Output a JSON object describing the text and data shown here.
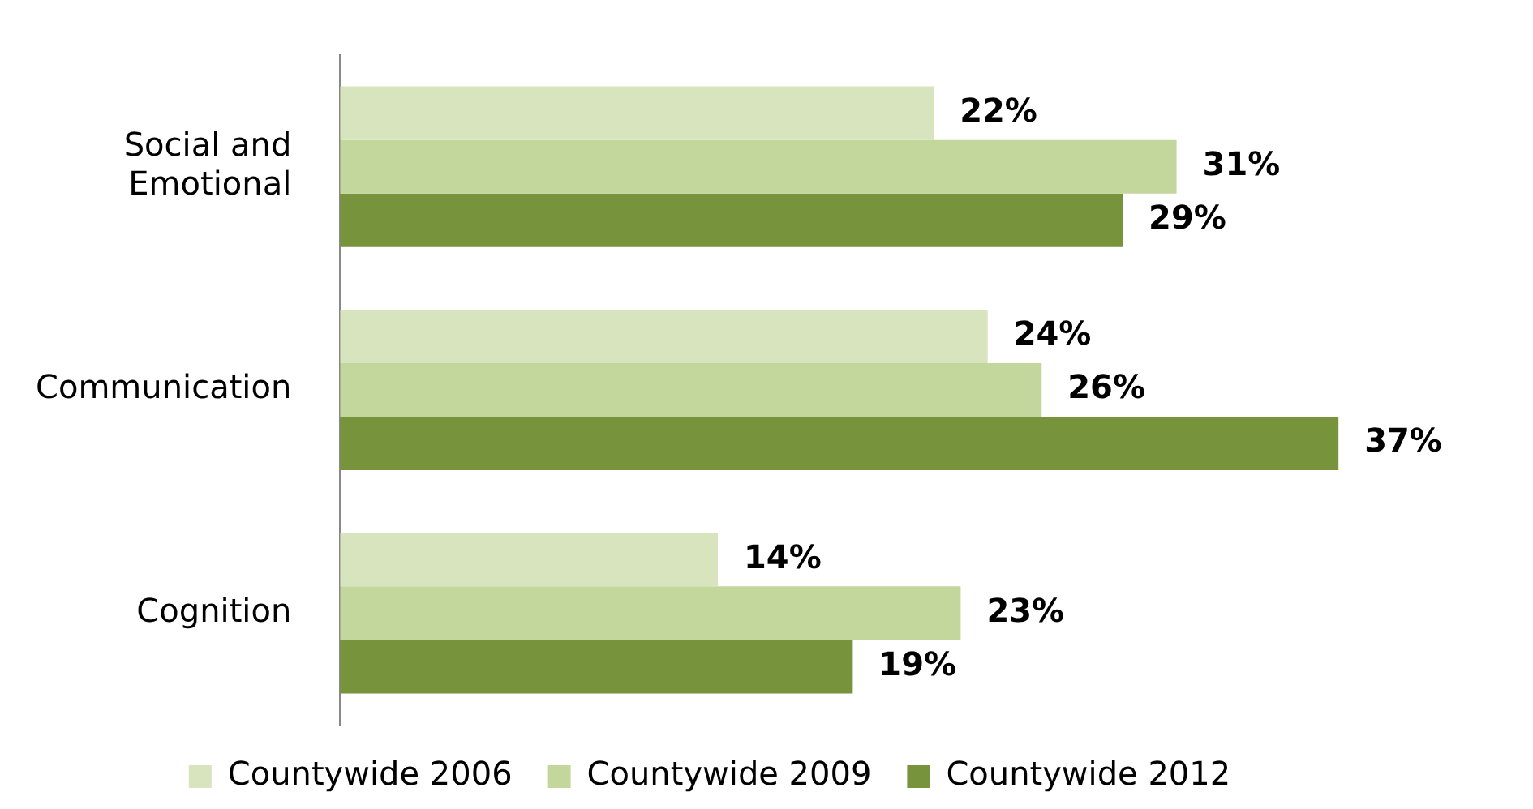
{
  "chart_data": {
    "type": "bar",
    "orientation": "horizontal",
    "categories": [
      "Social and\nEmotional",
      "Communication",
      "Cognition"
    ],
    "series": [
      {
        "name": "Countywide 2006",
        "color": "#d7e4bd",
        "values": [
          22,
          24,
          14
        ],
        "value_labels": [
          "22%",
          "24%",
          "14%"
        ]
      },
      {
        "name": "Countywide 2009",
        "color": "#c3d69b",
        "values": [
          31,
          26,
          23
        ],
        "value_labels": [
          "31%",
          "26%",
          "23%"
        ]
      },
      {
        "name": "Countywide 2012",
        "color": "#77933c",
        "values": [
          29,
          37,
          19
        ],
        "value_labels": [
          "29%",
          "37%",
          "19%"
        ]
      }
    ],
    "legend": "bottom"
  }
}
